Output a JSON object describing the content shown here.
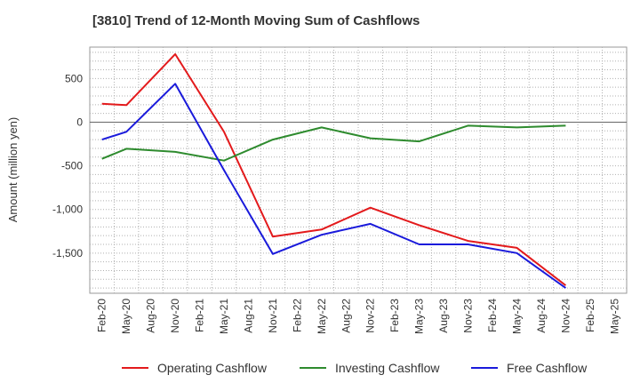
{
  "chart_data": {
    "type": "line",
    "title": "[3810]  Trend of 12-Month Moving Sum of Cashflows",
    "xlabel": "",
    "ylabel": "Amount (million yen)",
    "categories": [
      "Feb-20",
      "May-20",
      "Aug-20",
      "Nov-20",
      "Feb-21",
      "May-21",
      "Aug-21",
      "Nov-21",
      "Feb-22",
      "May-22",
      "Aug-22",
      "Nov-22",
      "Feb-23",
      "May-23",
      "Aug-23",
      "Nov-23",
      "Feb-24",
      "May-24",
      "Aug-24",
      "Nov-24",
      "Feb-25",
      "May-25"
    ],
    "ylim": [
      -1960,
      860
    ],
    "yticks": [
      500,
      0,
      -500,
      -1000,
      -1500
    ],
    "ytick_labels": [
      "500",
      "0",
      "-500",
      "-1,000",
      "-1,500"
    ],
    "grid": true,
    "legend_position": "bottom",
    "series": [
      {
        "name": "Operating Cashflow",
        "color": "#e31a1c",
        "values": [
          210,
          195,
          null,
          780,
          null,
          -110,
          null,
          -1310,
          null,
          -1230,
          null,
          -980,
          null,
          -1180,
          null,
          -1360,
          null,
          -1440,
          null,
          -1870,
          null,
          null
        ]
      },
      {
        "name": "Investing Cashflow",
        "color": "#2e8b2e",
        "values": [
          -420,
          -305,
          null,
          -340,
          null,
          -440,
          null,
          -200,
          null,
          -60,
          null,
          -185,
          null,
          -220,
          null,
          -40,
          null,
          -60,
          null,
          -40,
          null,
          null
        ]
      },
      {
        "name": "Free Cashflow",
        "color": "#1a1adb",
        "values": [
          -200,
          -110,
          null,
          440,
          null,
          -550,
          null,
          -1510,
          null,
          -1290,
          null,
          -1165,
          null,
          -1400,
          null,
          -1400,
          null,
          -1500,
          null,
          -1900,
          null,
          null
        ]
      }
    ]
  }
}
